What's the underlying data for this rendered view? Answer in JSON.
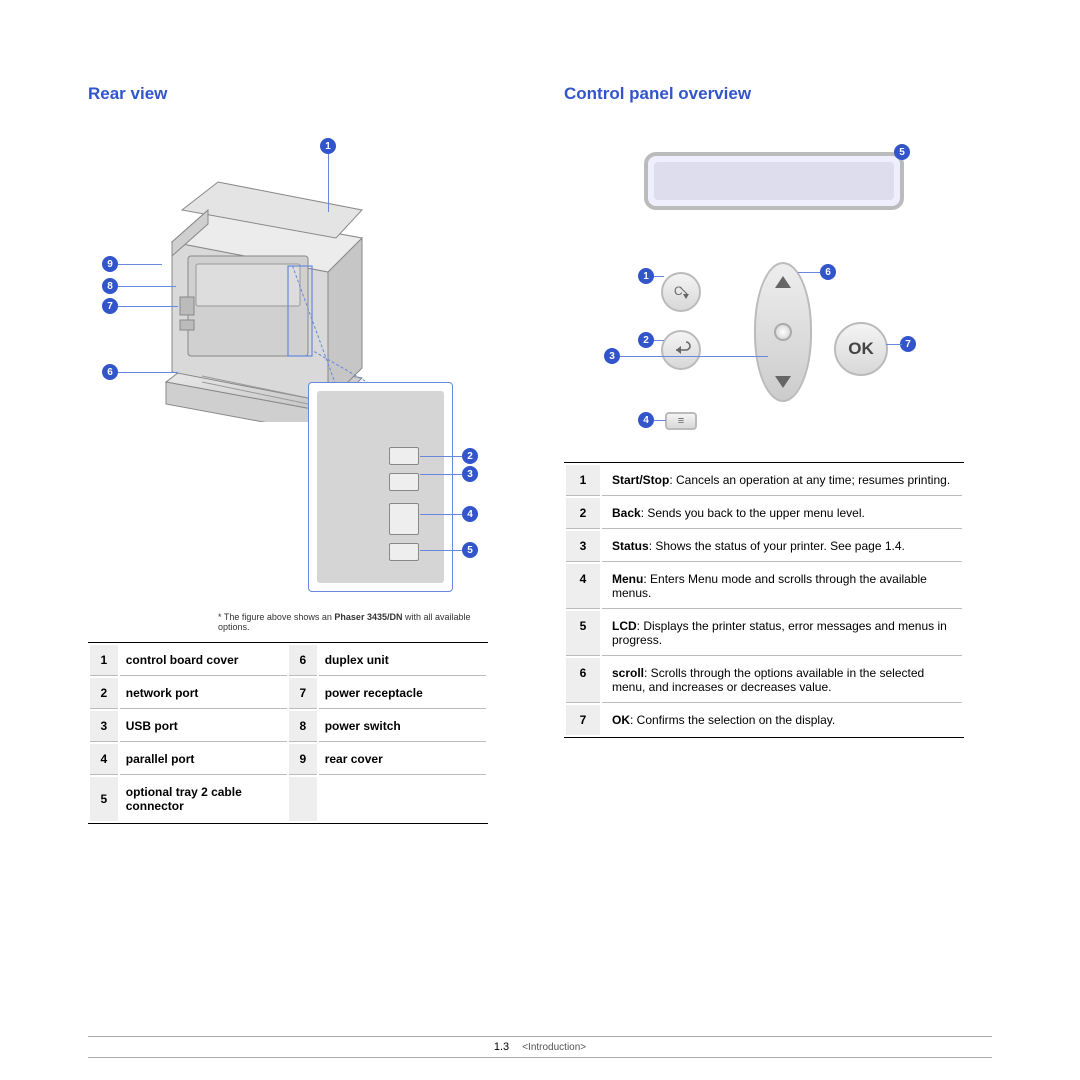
{
  "headings": {
    "rear": "Rear view",
    "panel": "Control panel overview"
  },
  "caption_prefix": "* The figure above shows an ",
  "caption_model": "Phaser 3435/DN",
  "caption_suffix": " with all available options.",
  "parts": [
    {
      "n": "1",
      "label": "control board cover",
      "n2": "6",
      "label2": "duplex unit"
    },
    {
      "n": "2",
      "label": "network port",
      "n2": "7",
      "label2": "power receptacle"
    },
    {
      "n": "3",
      "label": "USB port",
      "n2": "8",
      "label2": "power switch"
    },
    {
      "n": "4",
      "label": "parallel port",
      "n2": "9",
      "label2": "rear cover"
    },
    {
      "n": "5",
      "label": "optional tray 2 cable connector",
      "n2": "",
      "label2": ""
    }
  ],
  "rear_badges": {
    "b1": "1",
    "b2": "2",
    "b3": "3",
    "b4": "4",
    "b5": "5",
    "b6": "6",
    "b7": "7",
    "b8": "8",
    "b9": "9"
  },
  "panel_badges": {
    "p1": "1",
    "p2": "2",
    "p3": "3",
    "p4": "4",
    "p5": "5",
    "p6": "6",
    "p7": "7"
  },
  "ok_label": "OK",
  "cp_rows": [
    {
      "n": "1",
      "term": "Start/Stop",
      "desc": ": Cancels an operation at any time; resumes printing."
    },
    {
      "n": "2",
      "term": "Back",
      "desc": ": Sends you back to the upper menu level."
    },
    {
      "n": "3",
      "term": "Status",
      "desc": ": Shows the status of your printer. See page 1.4."
    },
    {
      "n": "4",
      "term": "Menu",
      "desc": ": Enters Menu mode and scrolls through the available menus."
    },
    {
      "n": "5",
      "term": "LCD",
      "desc": ": Displays the printer status, error messages and menus in progress."
    },
    {
      "n": "6",
      "term": "scroll",
      "desc": ": Scrolls through the options available in the selected menu, and increases or decreases value."
    },
    {
      "n": "7",
      "term": "OK",
      "desc": ": Confirms the selection on the display."
    }
  ],
  "footer": {
    "page": "1.3",
    "section": "<Introduction>"
  },
  "colors": {
    "heading": "#3355cc",
    "badge_bg": "#3355cc",
    "lead": "#6688dd"
  }
}
